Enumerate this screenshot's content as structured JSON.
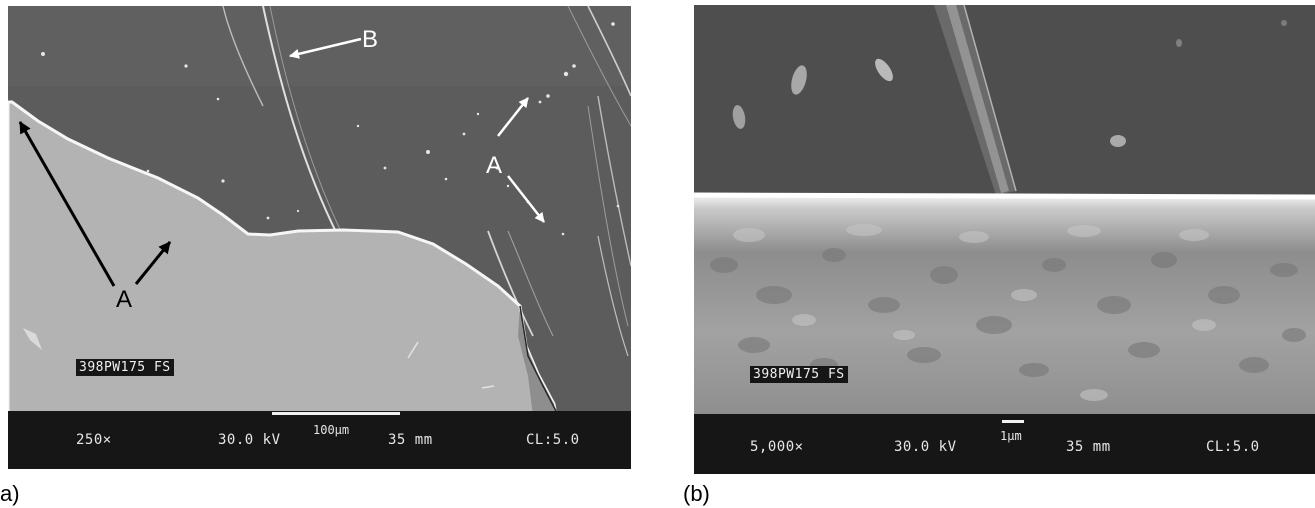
{
  "panel_a": {
    "caption": "a)",
    "sample_label": "398PW175 FS",
    "magnification": "250×",
    "voltage": "30.0 kV",
    "scale_label": "100µm",
    "working_distance": "35 mm",
    "cl": "CL:5.0",
    "annotations": {
      "b": "B",
      "a_dark_region": "A",
      "a_light_region": "A"
    }
  },
  "panel_b": {
    "caption": "(b)",
    "sample_label": "398PW175 FS",
    "magnification": "5,000×",
    "voltage": "30.0 kV",
    "scale_label": "1µm",
    "working_distance": "35 mm",
    "cl": "CL:5.0"
  },
  "colors": {
    "background_grey": "#5a5a5a",
    "coating_grey": "#b4b4b4",
    "info_bar": "#161616",
    "annotation_white": "#ffffff",
    "annotation_black": "#000000"
  }
}
